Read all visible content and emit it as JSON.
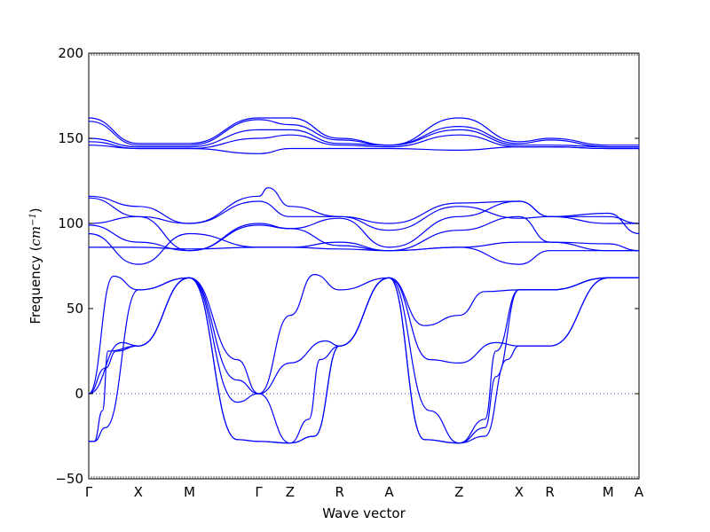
{
  "chart_data": {
    "type": "line",
    "title": "",
    "xlabel": "Wave vector",
    "ylabel": "Frequency (",
    "ylabel_unit": "cm",
    "ylabel_exp": "−1",
    "ylabel_close": ")",
    "ylim": [
      -50,
      200
    ],
    "y_ticks": [
      -50,
      0,
      50,
      100,
      150,
      200
    ],
    "x_labels": [
      "Γ",
      "X",
      "M",
      "Γ",
      "Z",
      "R",
      "A",
      "Z",
      "X",
      "R",
      "M",
      "A"
    ],
    "x_label_positions": [
      0,
      0.09,
      0.183,
      0.309,
      0.366,
      0.456,
      0.546,
      0.673,
      0.782,
      0.838,
      0.944,
      1.0
    ],
    "zero_line": 0,
    "line_color": "#0000ff",
    "zero_line_color": "#3f3fbf",
    "series": [
      {
        "x": [
          0,
          0.09,
          0.183,
          0.309,
          0.366,
          0.456,
          0.546,
          0.673,
          0.782,
          0.838,
          0.944,
          1.0
        ],
        "y": [
          162,
          147,
          147,
          162,
          162,
          150,
          146,
          162,
          148,
          150,
          146,
          146
        ]
      },
      {
        "x": [
          0,
          0.09,
          0.183,
          0.309,
          0.366,
          0.456,
          0.546,
          0.673,
          0.782,
          0.838,
          0.944,
          1.0
        ],
        "y": [
          160,
          146,
          146,
          161,
          158,
          149,
          146,
          157,
          147,
          149,
          145,
          145
        ]
      },
      {
        "x": [
          0,
          0.09,
          0.183,
          0.309,
          0.366,
          0.456,
          0.546,
          0.673,
          0.782,
          0.838,
          0.944,
          1.0
        ],
        "y": [
          150,
          145,
          145,
          155,
          155,
          147,
          146,
          155,
          146,
          146,
          145,
          145
        ]
      },
      {
        "x": [
          0,
          0.09,
          0.183,
          0.309,
          0.366,
          0.456,
          0.546,
          0.673,
          0.782,
          0.838,
          0.944,
          1.0
        ],
        "y": [
          148,
          144,
          144,
          150,
          152,
          146,
          145,
          152,
          145,
          145,
          144,
          144
        ]
      },
      {
        "x": [
          0,
          0.09,
          0.183,
          0.309,
          0.366,
          0.456,
          0.546,
          0.673,
          0.782,
          0.838,
          0.944,
          1.0
        ],
        "y": [
          146,
          144,
          144,
          141,
          144,
          144,
          144,
          143,
          145,
          145,
          144,
          144
        ]
      },
      {
        "x": [
          0,
          0.09,
          0.183,
          0.309,
          0.326,
          0.366,
          0.456,
          0.546,
          0.673,
          0.782,
          0.838,
          0.944,
          1.0
        ],
        "y": [
          116,
          110,
          100,
          116,
          121,
          110,
          104,
          100,
          112,
          113,
          104,
          100,
          100
        ]
      },
      {
        "x": [
          0,
          0.09,
          0.183,
          0.309,
          0.366,
          0.456,
          0.546,
          0.673,
          0.782,
          0.838,
          0.944,
          1.0
        ],
        "y": [
          115,
          104,
          100,
          113,
          104,
          104,
          96,
          110,
          103,
          104,
          104,
          100
        ]
      },
      {
        "x": [
          0,
          0.09,
          0.183,
          0.309,
          0.366,
          0.456,
          0.546,
          0.673,
          0.782,
          0.838,
          0.944,
          1.0
        ],
        "y": [
          100,
          104,
          84,
          100,
          97,
          103,
          86,
          104,
          113,
          104,
          106,
          94
        ]
      },
      {
        "x": [
          0,
          0.09,
          0.183,
          0.309,
          0.366,
          0.456,
          0.546,
          0.673,
          0.782,
          0.838,
          0.944,
          1.0
        ],
        "y": [
          99,
          89,
          84,
          99,
          97,
          87,
          84,
          96,
          104,
          89,
          88,
          84
        ]
      },
      {
        "x": [
          0,
          0.09,
          0.183,
          0.309,
          0.366,
          0.456,
          0.546,
          0.673,
          0.782,
          0.838,
          0.944,
          1.0
        ],
        "y": [
          94,
          76,
          94,
          86,
          86,
          89,
          84,
          86,
          89,
          89,
          84,
          84
        ]
      },
      {
        "x": [
          0,
          0.09,
          0.183,
          0.309,
          0.366,
          0.456,
          0.546,
          0.673,
          0.782,
          0.838,
          0.944,
          1.0
        ],
        "y": [
          86,
          86,
          85,
          86,
          86,
          85,
          84,
          86,
          76,
          84,
          84,
          84
        ]
      },
      {
        "x": [
          0,
          0.045,
          0.09,
          0.183,
          0.27,
          0.309,
          0.366,
          0.41,
          0.456,
          0.546,
          0.61,
          0.673,
          0.72,
          0.782,
          0.838,
          0.944,
          1.0
        ],
        "y": [
          0,
          69,
          61,
          68,
          20,
          0,
          46,
          70,
          61,
          68,
          40,
          46,
          60,
          61,
          61,
          68,
          68
        ]
      },
      {
        "x": [
          0,
          0.06,
          0.09,
          0.183,
          0.27,
          0.309,
          0.366,
          0.43,
          0.456,
          0.546,
          0.62,
          0.673,
          0.74,
          0.782,
          0.838,
          0.944,
          1.0
        ],
        "y": [
          0,
          30,
          28,
          68,
          8,
          0,
          18,
          31,
          28,
          68,
          20,
          18,
          30,
          28,
          28,
          68,
          68
        ]
      },
      {
        "x": [
          0,
          0.03,
          0.05,
          0.09,
          0.183,
          0.27,
          0.309,
          0.366,
          0.4,
          0.42,
          0.456,
          0.546,
          0.62,
          0.673,
          0.72,
          0.74,
          0.782,
          0.838,
          0.944,
          1.0
        ],
        "y": [
          0,
          15,
          25,
          28,
          68,
          -5,
          0,
          -29,
          -15,
          20,
          28,
          68,
          -10,
          -29,
          -15,
          25,
          61,
          61,
          68,
          68
        ]
      },
      {
        "x": [
          0,
          0.01,
          0.03,
          0.09,
          0.183,
          0.27,
          0.309,
          0.366,
          0.41,
          0.456,
          0.546,
          0.61,
          0.673,
          0.72,
          0.74,
          0.782,
          0.838,
          0.944,
          1.0
        ],
        "y": [
          -28,
          -28,
          -20,
          61,
          68,
          -27,
          -28,
          -29,
          -25,
          28,
          68,
          -27,
          -29,
          -20,
          10,
          61,
          61,
          68,
          68
        ]
      },
      {
        "x": [
          0,
          0.01,
          0.025,
          0.035,
          0.09,
          0.183,
          0.27,
          0.309,
          0.366,
          0.41,
          0.456,
          0.546,
          0.61,
          0.673,
          0.72,
          0.76,
          0.782,
          0.838,
          0.944,
          1.0
        ],
        "y": [
          -28,
          -28,
          -10,
          25,
          28,
          68,
          -27,
          -28,
          -29,
          -25,
          28,
          68,
          -27,
          -29,
          -25,
          20,
          28,
          28,
          68,
          68
        ]
      }
    ]
  }
}
